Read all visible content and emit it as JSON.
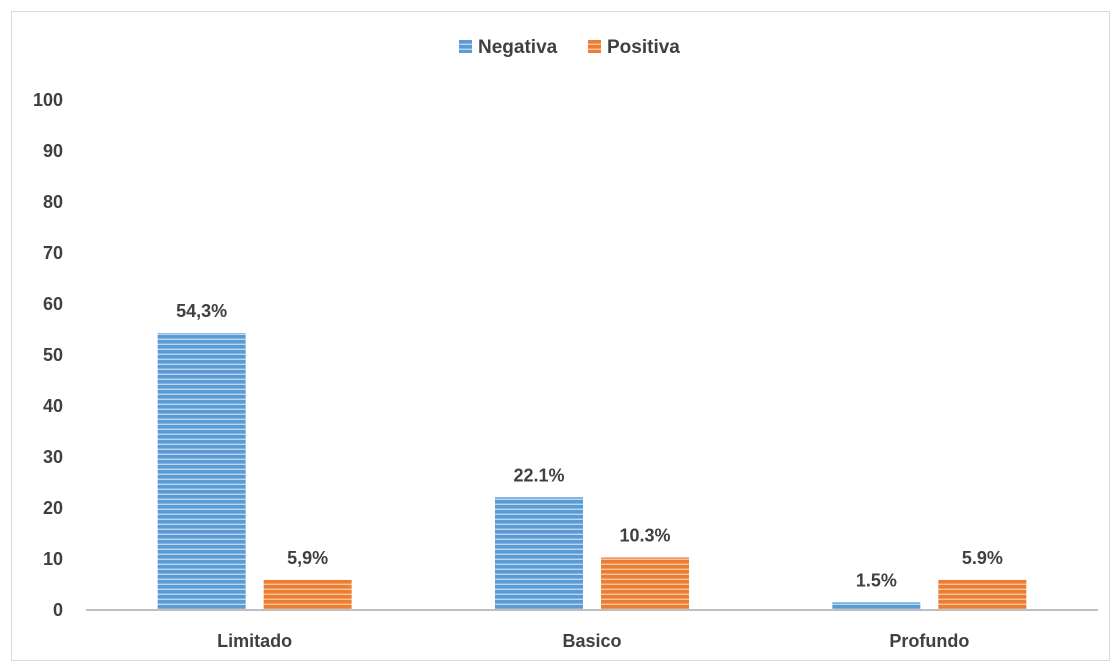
{
  "chart_data": {
    "type": "bar",
    "title": "",
    "xlabel": "",
    "ylabel": "",
    "categories": [
      "Limitado",
      "Basico",
      "Profundo"
    ],
    "ylim": [
      0,
      100
    ],
    "yticks": [
      "0",
      "10",
      "20",
      "30",
      "40",
      "50",
      "60",
      "70",
      "80",
      "90",
      "100"
    ],
    "grid": false,
    "legend_position": "top-center",
    "series": [
      {
        "name": "Negativa",
        "color": "#5b9bd5",
        "values": [
          54.3,
          22.1,
          1.5
        ],
        "labels": [
          "54,3%",
          "22.1%",
          "1.5%"
        ]
      },
      {
        "name": "Positiva",
        "color": "#ed7d31",
        "values": [
          5.9,
          10.3,
          5.9
        ],
        "labels": [
          "5,9%",
          "10.3%",
          "5.9%"
        ]
      }
    ]
  }
}
